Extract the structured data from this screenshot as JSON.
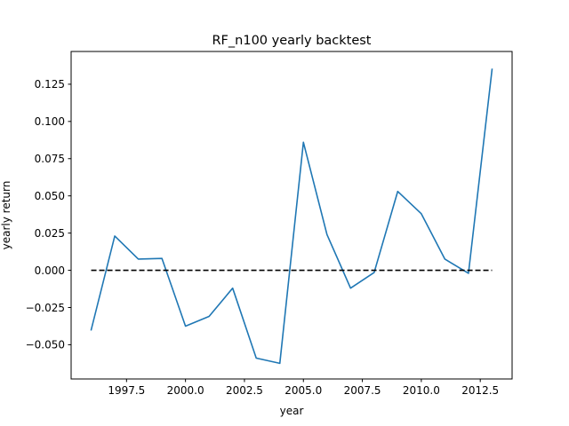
{
  "chart_data": {
    "type": "line",
    "title": "RF_n100 yearly backtest",
    "xlabel": "year",
    "ylabel": "yearly return",
    "xlim": [
      1995.15,
      2013.85
    ],
    "ylim": [
      -0.073,
      0.147
    ],
    "xticks": [
      1997.5,
      2000.0,
      2002.5,
      2005.0,
      2007.5,
      2010.0,
      2012.5
    ],
    "xtick_labels": [
      "1997.5",
      "2000.0",
      "2002.5",
      "2005.0",
      "2007.5",
      "2010.0",
      "2012.5"
    ],
    "yticks": [
      -0.05,
      -0.025,
      0.0,
      0.025,
      0.05,
      0.075,
      0.1,
      0.125
    ],
    "ytick_labels": [
      "−0.050",
      "−0.025",
      "0.000",
      "0.025",
      "0.050",
      "0.075",
      "0.100",
      "0.125"
    ],
    "grid": false,
    "series": [
      {
        "color": "#1f77b4",
        "style": "solid",
        "x": [
          1996,
          1997,
          1998,
          1999,
          2000,
          2001,
          2002,
          2003,
          2004,
          2005,
          2006,
          2007,
          2008,
          2009,
          2010,
          2011,
          2012,
          2013
        ],
        "values": [
          -0.04,
          0.023,
          0.0075,
          0.008,
          -0.0375,
          -0.031,
          -0.012,
          -0.059,
          -0.0625,
          0.086,
          0.024,
          -0.012,
          -0.0015,
          0.053,
          0.038,
          0.0075,
          -0.002,
          0.135
        ]
      },
      {
        "color": "#000000",
        "style": "dashed",
        "x": [
          1996,
          2013
        ],
        "values": [
          0.0,
          0.0
        ]
      }
    ]
  }
}
